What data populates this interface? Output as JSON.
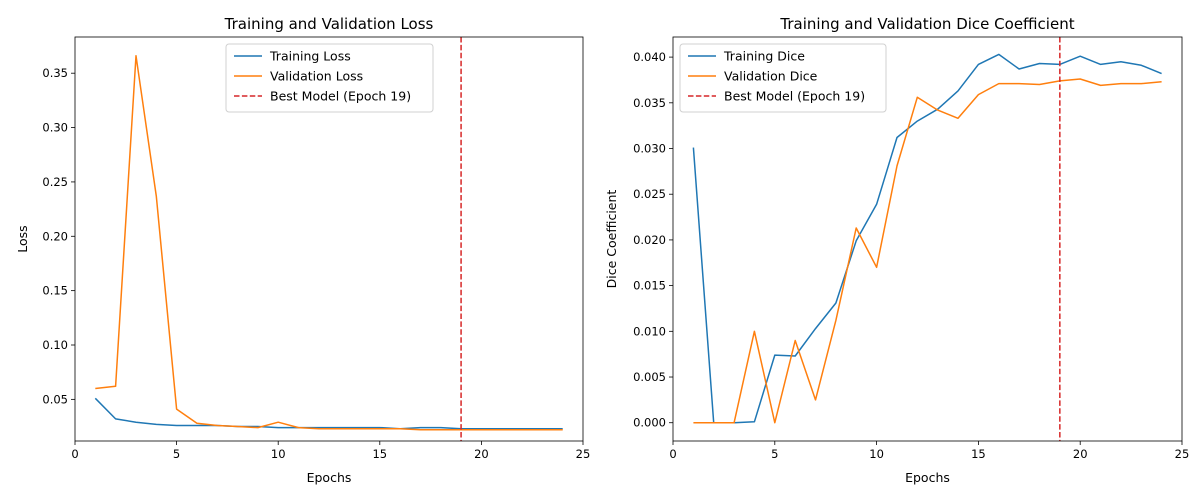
{
  "chart_data": [
    {
      "type": "line",
      "title": "Training and Validation Loss",
      "xlabel": "Epochs",
      "ylabel": "Loss",
      "xlim": [
        0,
        25
      ],
      "ylim": [
        0.0117,
        0.3833
      ],
      "x_ticks": [
        0,
        5,
        10,
        15,
        20,
        25
      ],
      "y_ticks": [
        0.05,
        0.1,
        0.15,
        0.2,
        0.25,
        0.3,
        0.35
      ],
      "y_tick_labels": [
        "0.05",
        "0.10",
        "0.15",
        "0.20",
        "0.25",
        "0.30",
        "0.35"
      ],
      "x": [
        1,
        2,
        3,
        4,
        5,
        6,
        7,
        8,
        9,
        10,
        11,
        12,
        13,
        14,
        15,
        16,
        17,
        18,
        19,
        20,
        21,
        22,
        23,
        24
      ],
      "series": [
        {
          "name": "Training Loss",
          "color": "#1f77b4",
          "values": [
            0.051,
            0.032,
            0.029,
            0.027,
            0.026,
            0.026,
            0.026,
            0.025,
            0.025,
            0.024,
            0.024,
            0.024,
            0.024,
            0.024,
            0.024,
            0.023,
            0.024,
            0.024,
            0.023,
            0.023,
            0.023,
            0.023,
            0.023,
            0.023
          ]
        },
        {
          "name": "Validation Loss",
          "color": "#ff7f0e",
          "values": [
            0.06,
            0.062,
            0.366,
            0.237,
            0.041,
            0.028,
            0.026,
            0.025,
            0.024,
            0.029,
            0.024,
            0.023,
            0.023,
            0.023,
            0.023,
            0.023,
            0.022,
            0.022,
            0.022,
            0.022,
            0.022,
            0.022,
            0.022,
            0.022
          ]
        }
      ],
      "vline": {
        "x": 19,
        "label": "Best Model (Epoch 19)",
        "color": "#d62728"
      },
      "legend_position": "top-center",
      "grid": false
    },
    {
      "type": "line",
      "title": "Training and Validation Dice Coefficient",
      "xlabel": "Epochs",
      "ylabel": "Dice Coefficient",
      "xlim": [
        0,
        25
      ],
      "ylim": [
        -0.002,
        0.0422
      ],
      "x_ticks": [
        0,
        5,
        10,
        15,
        20,
        25
      ],
      "y_ticks": [
        0.0,
        0.005,
        0.01,
        0.015,
        0.02,
        0.025,
        0.03,
        0.035,
        0.04
      ],
      "y_tick_labels": [
        "0.000",
        "0.005",
        "0.010",
        "0.015",
        "0.020",
        "0.025",
        "0.030",
        "0.035",
        "0.040"
      ],
      "x": [
        1,
        2,
        3,
        4,
        5,
        6,
        7,
        8,
        9,
        10,
        11,
        12,
        13,
        14,
        15,
        16,
        17,
        18,
        19,
        20,
        21,
        22,
        23,
        24
      ],
      "series": [
        {
          "name": "Training Dice",
          "color": "#1f77b4",
          "values": [
            0.0301,
            0.0,
            0.0,
            0.0001,
            0.0074,
            0.0073,
            0.0103,
            0.0131,
            0.0199,
            0.0239,
            0.0312,
            0.033,
            0.0343,
            0.0363,
            0.0392,
            0.0403,
            0.0387,
            0.0393,
            0.0392,
            0.0401,
            0.0392,
            0.0395,
            0.0391,
            0.0382
          ]
        },
        {
          "name": "Validation Dice",
          "color": "#ff7f0e",
          "values": [
            0.0,
            0.0,
            0.0,
            0.01,
            0.0,
            0.009,
            0.0025,
            0.0112,
            0.0213,
            0.017,
            0.0281,
            0.0356,
            0.0342,
            0.0333,
            0.0359,
            0.0371,
            0.0371,
            0.037,
            0.0374,
            0.0376,
            0.0369,
            0.0371,
            0.0371,
            0.0373
          ]
        }
      ],
      "vline": {
        "x": 19,
        "label": "Best Model (Epoch 19)",
        "color": "#d62728"
      },
      "legend_position": "top-left",
      "grid": false
    }
  ]
}
